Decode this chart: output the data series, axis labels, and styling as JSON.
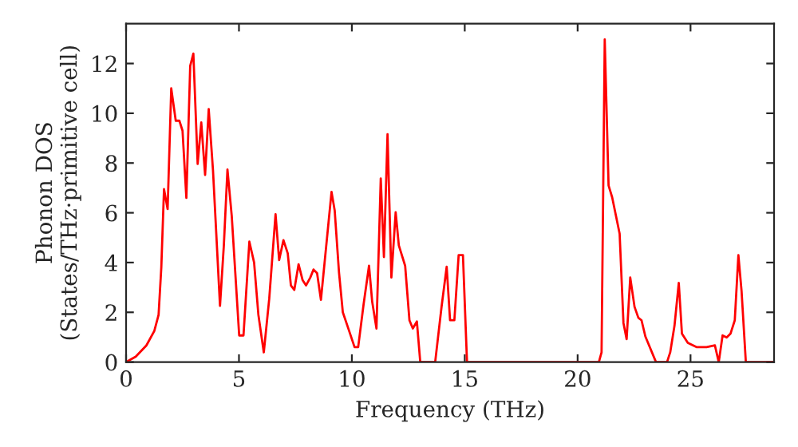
{
  "chart_data": {
    "type": "line",
    "xlabel": "Frequency (THz)",
    "ylabel": "Phonon DOS\n(States/THz·primitive cell)",
    "xlim": [
      0,
      28.7
    ],
    "ylim": [
      0,
      13.6
    ],
    "xticks": [
      0,
      5,
      10,
      15,
      20,
      25
    ],
    "yticks": [
      0,
      2,
      4,
      6,
      8,
      10,
      12
    ],
    "marker": "none",
    "line_style": "solid",
    "series": [
      {
        "color": "#ff0000",
        "x": [
          0,
          0.43,
          0.9,
          1.25,
          1.44,
          1.56,
          1.68,
          1.84,
          2.0,
          2.2,
          2.36,
          2.5,
          2.67,
          2.84,
          2.98,
          3.17,
          3.33,
          3.5,
          3.66,
          3.85,
          4.16,
          4.33,
          4.49,
          4.68,
          5.01,
          5.2,
          5.46,
          5.67,
          5.86,
          6.1,
          6.34,
          6.62,
          6.78,
          6.97,
          7.16,
          7.3,
          7.45,
          7.64,
          7.82,
          7.97,
          8.16,
          8.3,
          8.46,
          8.63,
          8.82,
          9.1,
          9.24,
          9.43,
          9.6,
          9.88,
          10.12,
          10.28,
          10.52,
          10.76,
          10.9,
          11.09,
          11.28,
          11.42,
          11.58,
          11.75,
          11.94,
          12.08,
          12.36,
          12.55,
          12.7,
          12.88,
          13.03,
          13.69,
          13.97,
          14.2,
          14.35,
          14.54,
          14.73,
          14.92,
          15.1,
          20.94,
          21.06,
          21.2,
          21.37,
          21.53,
          21.86,
          22.03,
          22.17,
          22.33,
          22.52,
          22.69,
          22.83,
          23.0,
          23.47,
          23.96,
          24.1,
          24.29,
          24.48,
          24.62,
          24.88,
          25.28,
          25.71,
          26.08,
          26.25,
          26.42,
          26.6,
          26.77,
          26.96,
          27.12,
          27.26,
          27.45,
          28.7
        ],
        "values": [
          0,
          0.22,
          0.67,
          1.25,
          1.9,
          3.8,
          6.95,
          6.15,
          11.0,
          9.7,
          9.7,
          9.3,
          6.6,
          11.9,
          12.4,
          7.96,
          9.63,
          7.52,
          10.17,
          7.7,
          2.26,
          4.69,
          7.74,
          5.87,
          1.07,
          1.07,
          4.84,
          4.0,
          1.9,
          0.39,
          2.54,
          5.94,
          4.1,
          4.9,
          4.37,
          3.08,
          2.9,
          3.93,
          3.29,
          3.08,
          3.4,
          3.72,
          3.57,
          2.5,
          4.26,
          6.84,
          6.09,
          3.61,
          2.0,
          1.25,
          0.6,
          0.6,
          2.32,
          3.87,
          2.43,
          1.35,
          7.38,
          4.22,
          9.16,
          3.4,
          6.02,
          4.69,
          3.87,
          1.68,
          1.35,
          1.63,
          0,
          0,
          2.2,
          3.83,
          1.68,
          1.68,
          4.3,
          4.3,
          0,
          0,
          0.39,
          12.97,
          7.1,
          6.62,
          5.16,
          1.57,
          0.92,
          3.4,
          2.22,
          1.78,
          1.68,
          1.03,
          0,
          0,
          0.39,
          1.46,
          3.18,
          1.14,
          0.77,
          0.6,
          0.6,
          0.67,
          0,
          1.07,
          0.99,
          1.14,
          1.68,
          4.3,
          2.86,
          0,
          0
        ]
      }
    ]
  }
}
